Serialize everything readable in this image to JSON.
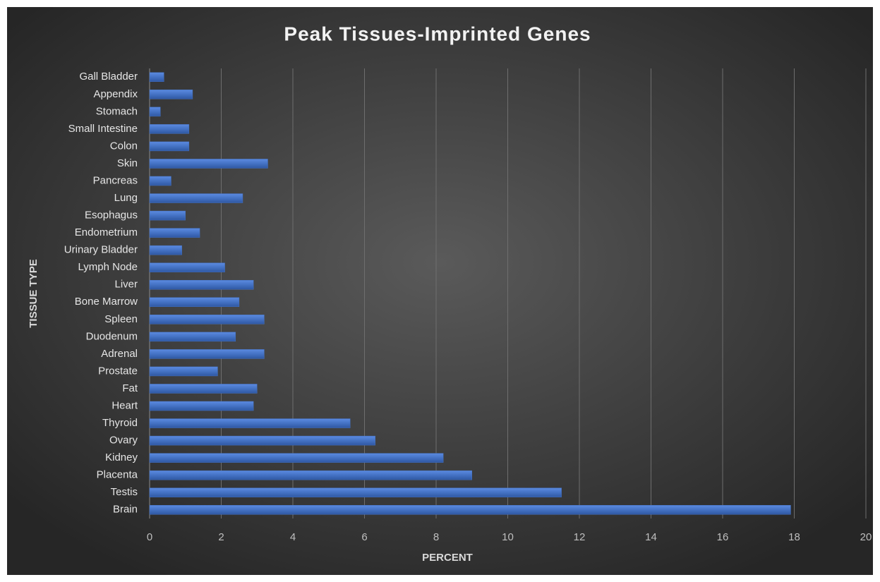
{
  "chart_data": {
    "type": "barh",
    "title": "Peak Tissues-Imprinted Genes",
    "x_label": "PERCENT",
    "y_label": "TISSUE TYPE",
    "categories": [
      "Brain",
      "Testis",
      "Placenta",
      "Kidney",
      "Ovary",
      "Thyroid",
      "Heart",
      "Fat",
      "Prostate",
      "Adrenal",
      "Duodenum",
      "Spleen",
      "Bone Marrow",
      "Liver",
      "Lymph Node",
      "Urinary Bladder",
      "Endometrium",
      "Esophagus",
      "Lung",
      "Pancreas",
      "Skin",
      "Colon",
      "Small Intestine",
      "Stomach",
      "Appendix",
      "Gall Bladder"
    ],
    "values": [
      17.9,
      11.5,
      9.0,
      8.2,
      6.3,
      5.6,
      2.9,
      3.0,
      1.9,
      3.2,
      2.4,
      3.2,
      2.5,
      2.9,
      2.1,
      0.9,
      1.4,
      1.0,
      2.6,
      0.6,
      3.3,
      1.1,
      1.1,
      0.3,
      1.2,
      0.4
    ],
    "color": "#4472c4",
    "xlim": [
      0,
      20
    ],
    "xticks": [
      0,
      2,
      4,
      6,
      8,
      10,
      12,
      14,
      16,
      18,
      20
    ],
    "grid": true
  }
}
